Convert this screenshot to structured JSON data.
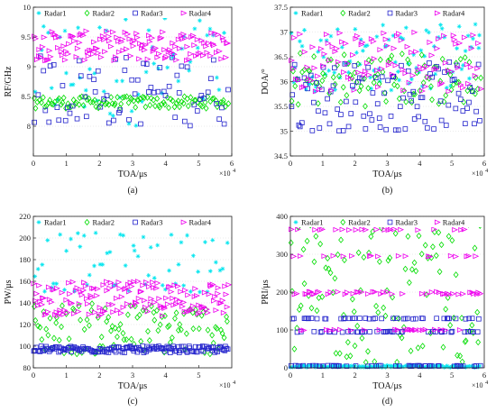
{
  "colors": {
    "Radar1": "#00e5ee",
    "Radar2": "#00dd00",
    "Radar3": "#2222cc",
    "Radar4": "#ee00ee"
  },
  "chart_data": [
    {
      "type": "scatter",
      "caption": "(a)",
      "xlabel": "TOA/μs",
      "ylabel": "RF/GHz",
      "x_exponent_label": "×10",
      "x_exponent_power": "4",
      "xlim": [
        0,
        6
      ],
      "ylim": [
        7.5,
        10
      ],
      "xticks": [
        "0",
        "1",
        "2",
        "3",
        "4",
        "5",
        "6"
      ],
      "yticks": [
        "8",
        "8.5",
        "9",
        "9.5",
        "10"
      ],
      "ytick_values": [
        8,
        8.5,
        9,
        9.5,
        10
      ],
      "xtick_values": [
        0,
        1,
        2,
        3,
        4,
        5,
        6
      ],
      "legend": [
        "Radar1",
        "Radar2",
        "Radar3",
        "Radar4"
      ],
      "series": [
        {
          "name": "Radar1",
          "marker": "star",
          "range": [
            8.0,
            9.9
          ],
          "count": 60,
          "mode": "uniform"
        },
        {
          "name": "Radar2",
          "marker": "diamond",
          "range": [
            8.3,
            8.5
          ],
          "count": 110,
          "mode": "band"
        },
        {
          "name": "Radar3",
          "marker": "square",
          "range": [
            8.0,
            9.2
          ],
          "count": 70,
          "mode": "uniform"
        },
        {
          "name": "Radar4",
          "marker": "triangle",
          "range": [
            9.1,
            9.6
          ],
          "count": 140,
          "mode": "band"
        }
      ]
    },
    {
      "type": "scatter",
      "caption": "(b)",
      "xlabel": "TOA/μs",
      "ylabel": "DOA/°",
      "x_exponent_label": "×10",
      "x_exponent_power": "4",
      "xlim": [
        0,
        6
      ],
      "ylim": [
        34.5,
        37.5
      ],
      "xticks": [
        "0",
        "1",
        "2",
        "3",
        "4",
        "5",
        "6"
      ],
      "yticks": [
        "34.5",
        "35",
        "35.5",
        "36",
        "36.5",
        "37",
        "37.5"
      ],
      "ytick_values": [
        34.5,
        35,
        35.5,
        36,
        36.5,
        37,
        37.5
      ],
      "xtick_values": [
        0,
        1,
        2,
        3,
        4,
        5,
        6
      ],
      "legend": [
        "Radar1",
        "Radar2",
        "Radar3",
        "Radar4"
      ],
      "series": [
        {
          "name": "Radar1",
          "marker": "star",
          "range": [
            35.8,
            37.2
          ],
          "count": 90,
          "mode": "uniform"
        },
        {
          "name": "Radar2",
          "marker": "diamond",
          "range": [
            35.5,
            36.6
          ],
          "count": 100,
          "mode": "uniform"
        },
        {
          "name": "Radar3",
          "marker": "square",
          "range": [
            35.0,
            36.4
          ],
          "count": 100,
          "mode": "uniform"
        },
        {
          "name": "Radar4",
          "marker": "triangle",
          "range": [
            35.8,
            37.1
          ],
          "count": 110,
          "mode": "uniform"
        }
      ]
    },
    {
      "type": "scatter",
      "caption": "(c)",
      "xlabel": "TOA/μs",
      "ylabel": "PW/μs",
      "x_exponent_label": "×10",
      "x_exponent_power": "4",
      "xlim": [
        0,
        6
      ],
      "ylim": [
        80,
        220
      ],
      "xticks": [
        "0",
        "1",
        "2",
        "3",
        "4",
        "5"
      ],
      "yticks": [
        "80",
        "100",
        "120",
        "140",
        "160",
        "180",
        "200",
        "220"
      ],
      "ytick_values": [
        80,
        100,
        120,
        140,
        160,
        180,
        200,
        220
      ],
      "xtick_values": [
        0,
        1,
        2,
        3,
        4,
        5
      ],
      "legend": [
        "Radar1",
        "Radar2",
        "Radar3",
        "Radar4"
      ],
      "series": [
        {
          "name": "Radar1",
          "marker": "star",
          "range": [
            150,
            205
          ],
          "count": 60,
          "mode": "uniform"
        },
        {
          "name": "Radar2",
          "marker": "diamond",
          "range": [
            92,
            140
          ],
          "count": 110,
          "mode": "uniform"
        },
        {
          "name": "Radar3",
          "marker": "square",
          "range": [
            94,
            100
          ],
          "count": 160,
          "mode": "band"
        },
        {
          "name": "Radar4",
          "marker": "triangle",
          "range": [
            128,
            160
          ],
          "count": 160,
          "mode": "band"
        }
      ]
    },
    {
      "type": "scatter",
      "caption": "(d)",
      "xlabel": "TOA/μs",
      "ylabel": "PRI/μs",
      "x_exponent_label": "×10",
      "x_exponent_power": "4",
      "xlim": [
        0,
        6
      ],
      "ylim": [
        0,
        400
      ],
      "xticks": [
        "0",
        "1",
        "2",
        "3",
        "4",
        "5",
        "6"
      ],
      "yticks": [
        "0",
        "100",
        "200",
        "300",
        "400"
      ],
      "ytick_values": [
        0,
        100,
        200,
        300,
        400
      ],
      "xtick_values": [
        0,
        1,
        2,
        3,
        4,
        5,
        6
      ],
      "legend": [
        "Radar1",
        "Radar2",
        "Radar3",
        "Radar4"
      ],
      "series": [
        {
          "name": "Radar1",
          "marker": "star",
          "levels": [
            2,
            5
          ],
          "count": 110,
          "mode": "levels"
        },
        {
          "name": "Radar2",
          "marker": "diamond",
          "range": [
            10,
            380
          ],
          "count": 110,
          "mode": "uniform"
        },
        {
          "name": "Radar3",
          "marker": "square",
          "levels": [
            5,
            95,
            130
          ],
          "count": 130,
          "mode": "levels"
        },
        {
          "name": "Radar4",
          "marker": "triangle",
          "levels": [
            100,
            195,
            200,
            295,
            365
          ],
          "count": 110,
          "mode": "levels"
        }
      ]
    }
  ]
}
